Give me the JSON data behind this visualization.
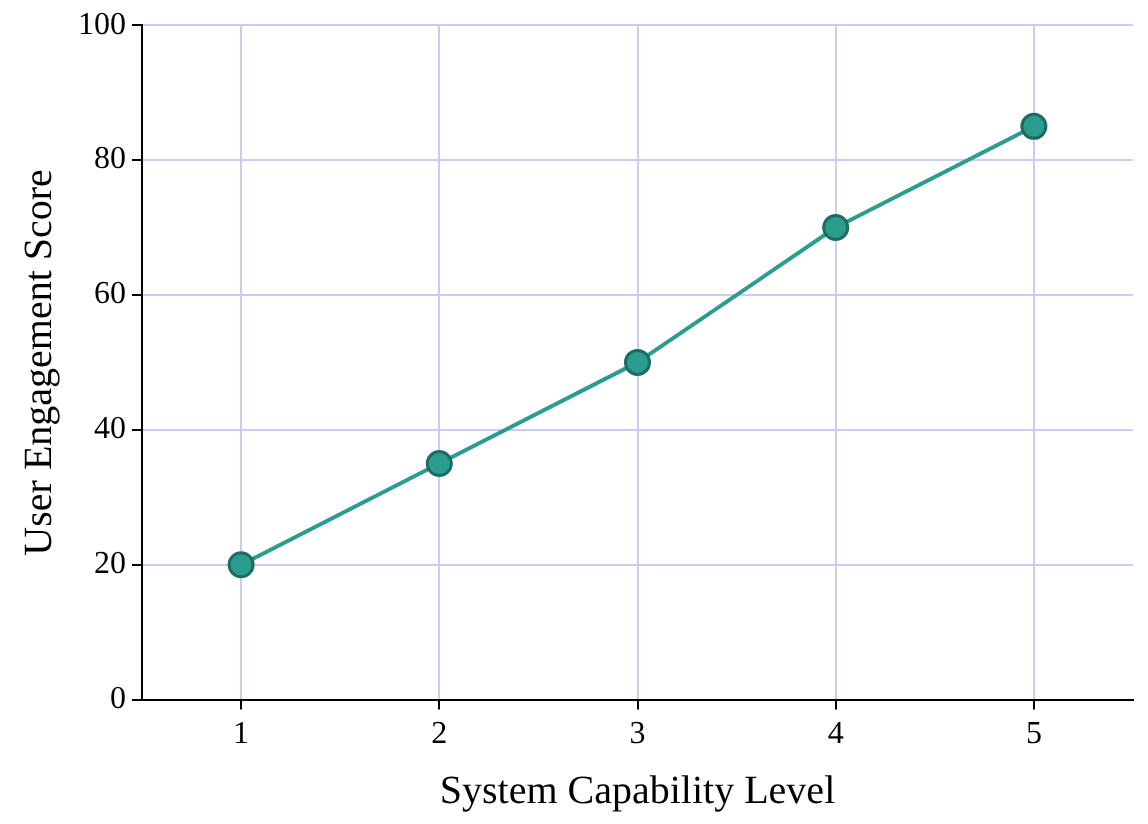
{
  "chart_data": {
    "type": "line",
    "xlabel": "System Capability Level",
    "ylabel": "User Engagement Score",
    "x": [
      1,
      2,
      3,
      4,
      5
    ],
    "series": [
      {
        "color": "#2a9d8f",
        "values": [
          20,
          35,
          50,
          70,
          85
        ]
      }
    ],
    "xlim": [
      0.5,
      5.5
    ],
    "xticks": [
      1,
      2,
      3,
      4,
      5
    ],
    "ylim": [
      0,
      100
    ],
    "yticks": [
      0,
      20,
      40,
      60,
      80,
      100
    ],
    "grid": true,
    "legend": false,
    "marker": "circle",
    "line_style": "solid"
  }
}
